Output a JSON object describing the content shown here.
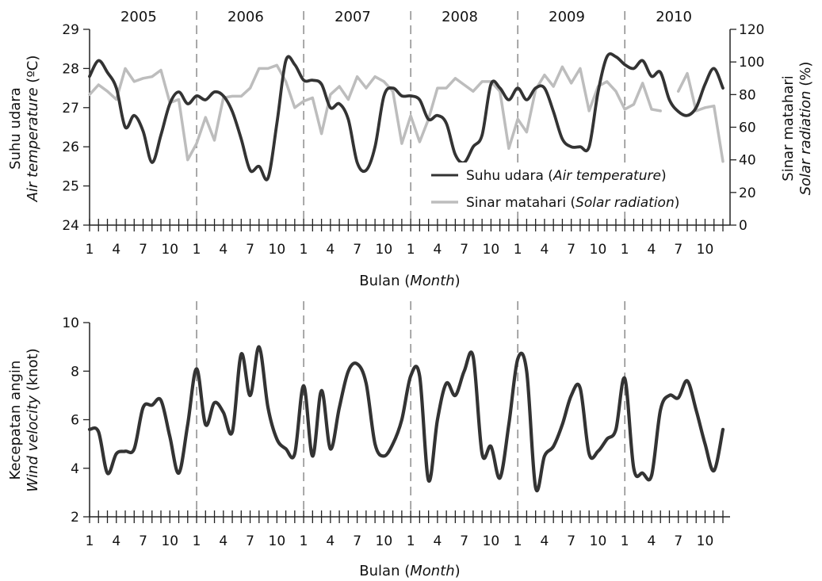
{
  "colors": {
    "temperature": "#333333",
    "solar": "#bdbdbd",
    "wind": "#333333",
    "axis": "#222222",
    "divider": "#7a7a7a"
  },
  "chart_data": [
    {
      "type": "line",
      "years": [
        "2005",
        "2006",
        "2007",
        "2008",
        "2009",
        "2010"
      ],
      "x_tick_labels": [
        "1",
        "4",
        "7",
        "10"
      ],
      "xlabel": {
        "main": "Bulan (",
        "italic": "Month",
        "close": ")"
      },
      "ylabel_left": {
        "line1": "Suhu udara",
        "line2_italic": "Air temperature",
        "line2_rest": " (ºC)"
      },
      "ylabel_right": {
        "line1": "Sinar matahari",
        "line2_italic": "Solar radiation",
        "line2_rest": " (%)"
      },
      "ylim_left": [
        24,
        29
      ],
      "ylim_right": [
        0,
        120
      ],
      "y_ticks_left": [
        "24",
        "25",
        "26",
        "27",
        "28",
        "29"
      ],
      "y_ticks_right": [
        "0",
        "20",
        "40",
        "60",
        "80",
        "100",
        "120"
      ],
      "legend": [
        {
          "text": "Suhu udara (",
          "italic": "Air temperature",
          "close": ")"
        },
        {
          "text": "Sinar matahari (",
          "italic": "Solar radiation",
          "close": ")"
        }
      ],
      "series": [
        {
          "name": "Suhu udara (Air temperature)",
          "axis": "left",
          "values": [
            27.8,
            28.2,
            27.9,
            27.5,
            26.5,
            26.8,
            26.4,
            25.6,
            26.3,
            27.1,
            27.4,
            27.1,
            27.3,
            27.2,
            27.4,
            27.3,
            26.9,
            26.2,
            25.4,
            25.5,
            25.2,
            26.6,
            28.2,
            28.1,
            27.7,
            27.7,
            27.6,
            27.0,
            27.1,
            26.7,
            25.6,
            25.4,
            26.0,
            27.3,
            27.5,
            27.3,
            27.3,
            27.2,
            26.7,
            26.8,
            26.6,
            25.8,
            25.6,
            26.0,
            26.3,
            27.6,
            27.5,
            27.2,
            27.5,
            27.2,
            27.5,
            27.5,
            26.9,
            26.2,
            26.0,
            26.0,
            26.0,
            27.4,
            28.3,
            28.3,
            28.1,
            28.0,
            28.2,
            27.8,
            27.9,
            27.2,
            26.9,
            26.8,
            27.0,
            27.6,
            28.0,
            27.5
          ]
        },
        {
          "name": "Sinar matahari (Solar radiation)",
          "axis": "right",
          "values": [
            80,
            86,
            82,
            77,
            96,
            88,
            90,
            91,
            95,
            75,
            77,
            40,
            50,
            66,
            52,
            78,
            79,
            79,
            84,
            96,
            96,
            98,
            88,
            72,
            76,
            78,
            56,
            80,
            85,
            77,
            91,
            84,
            91,
            88,
            82,
            50,
            67,
            51,
            65,
            84,
            84,
            90,
            86,
            82,
            88,
            88,
            82,
            47,
            65,
            57,
            83,
            92,
            85,
            97,
            87,
            96,
            70,
            85,
            88,
            82,
            71,
            74,
            87,
            71,
            70,
            null,
            82,
            93,
            70,
            72,
            73,
            39
          ]
        }
      ]
    },
    {
      "type": "line",
      "x_tick_labels": [
        "1",
        "4",
        "7",
        "10"
      ],
      "xlabel": {
        "main": "Bulan (",
        "italic": "Month",
        "close": ")"
      },
      "ylabel": {
        "line1": "Kecepatan angin",
        "line2_italic": "Wind velocity",
        "line2_rest": " (knot)"
      },
      "ylim": [
        2,
        10
      ],
      "y_ticks": [
        "2",
        "4",
        "6",
        "8",
        "10"
      ],
      "series": [
        {
          "name": "Kecepatan angin (Wind velocity)",
          "values": [
            5.6,
            5.5,
            3.8,
            4.6,
            4.7,
            4.8,
            6.5,
            6.6,
            6.8,
            5.3,
            3.8,
            5.8,
            8.1,
            5.8,
            6.7,
            6.3,
            5.5,
            8.7,
            7.0,
            9.0,
            6.5,
            5.2,
            4.8,
            4.6,
            7.4,
            4.5,
            7.2,
            4.8,
            6.5,
            8.0,
            8.3,
            7.5,
            5.0,
            4.5,
            5.0,
            6.0,
            7.8,
            7.8,
            3.5,
            6.0,
            7.5,
            7.0,
            8.0,
            8.6,
            4.6,
            4.9,
            3.6,
            5.8,
            8.5,
            8.0,
            3.2,
            4.5,
            4.9,
            5.8,
            7.0,
            7.3,
            4.6,
            4.7,
            5.2,
            5.6,
            7.7,
            4.0,
            3.8,
            3.7,
            6.4,
            7.0,
            6.9,
            7.6,
            6.4,
            5.0,
            3.9,
            5.6
          ]
        }
      ]
    }
  ]
}
